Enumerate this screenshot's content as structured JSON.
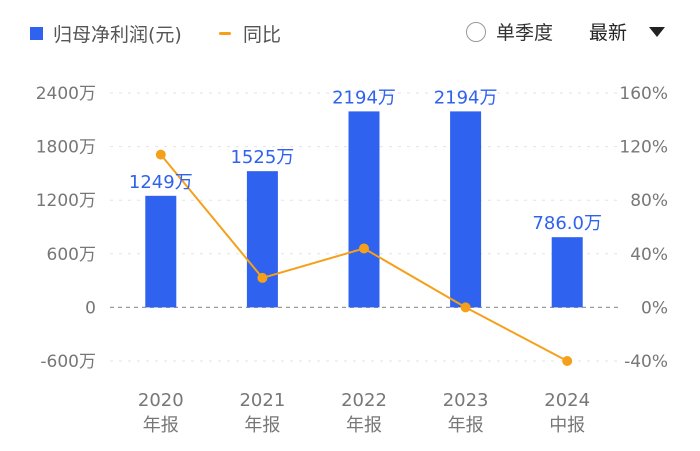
{
  "legend": {
    "bar_label": "归母净利润(元)",
    "line_label": "同比"
  },
  "controls": {
    "toggle_label": "单季度",
    "select_value": "最新"
  },
  "colors": {
    "bar": "#2f62ee",
    "line": "#f5a01a",
    "grid": "#e3e3e3",
    "zero_line": "#9a9a9a"
  },
  "chart_data": {
    "type": "bar",
    "categories": [
      [
        "2020",
        "年报"
      ],
      [
        "2021",
        "年报"
      ],
      [
        "2022",
        "年报"
      ],
      [
        "2023",
        "年报"
      ],
      [
        "2024",
        "中报"
      ]
    ],
    "series": [
      {
        "name": "归母净利润(元)",
        "type": "bar",
        "axis": "left",
        "values": [
          12490000,
          15250000,
          21940000,
          21940000,
          7860000
        ],
        "labels": [
          "1249万",
          "1525万",
          "2194万",
          "2194万",
          "786.0万"
        ]
      },
      {
        "name": "同比",
        "type": "line",
        "axis": "right",
        "values": [
          114,
          22,
          44,
          0,
          -40
        ]
      }
    ],
    "y_left": {
      "ticks": [
        24000000,
        18000000,
        12000000,
        6000000,
        0,
        -6000000
      ],
      "tick_labels": [
        "2400万",
        "1800万",
        "1200万",
        "600万",
        "0",
        "-600万"
      ],
      "lim": [
        -6000000,
        24000000
      ]
    },
    "y_right": {
      "ticks": [
        160,
        120,
        80,
        40,
        0,
        -40
      ],
      "tick_labels": [
        "160%",
        "120%",
        "80%",
        "40%",
        "0%",
        "-40%"
      ],
      "lim": [
        -40,
        160
      ]
    },
    "grid": true,
    "legend_position": "top-left"
  }
}
